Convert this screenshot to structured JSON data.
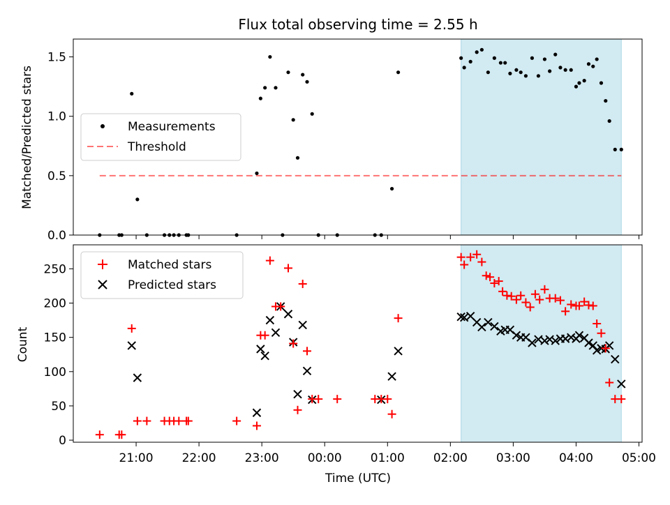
{
  "chart_data": [
    {
      "type": "scatter",
      "title": "Flux total observing time = 2.55 h",
      "xlabel": "",
      "ylabel": "Matched/Predicted stars",
      "xlim_hours": [
        20.0,
        29.05
      ],
      "ylim": [
        0,
        1.65
      ],
      "yticks": [
        0.0,
        0.5,
        1.0,
        1.5
      ],
      "ytick_labels": [
        "0.0",
        "0.5",
        "1.0",
        "1.5"
      ],
      "shaded_span_hours": [
        26.17,
        28.72
      ],
      "shaded_color": "#add8e6",
      "legend": {
        "placement": "center-left",
        "entries": [
          "Measurements",
          "Threshold"
        ]
      },
      "threshold": {
        "name": "Threshold",
        "y": 0.5,
        "x_range_hours": [
          20.42,
          28.72
        ],
        "color": "#ff0000",
        "style": "dashed"
      },
      "series": [
        {
          "name": "Measurements",
          "marker": "dot",
          "color": "#000000",
          "x": [
            20.42,
            20.73,
            20.77,
            20.93,
            21.02,
            21.17,
            21.45,
            21.53,
            21.6,
            21.68,
            21.8,
            21.83,
            22.6,
            22.92,
            22.98,
            23.05,
            23.13,
            23.22,
            23.33,
            23.42,
            23.5,
            23.57,
            23.65,
            23.72,
            23.8,
            23.9,
            24.2,
            24.8,
            24.9,
            25.07,
            25.17,
            26.17,
            26.22,
            26.32,
            26.42,
            26.5,
            26.6,
            26.7,
            26.8,
            26.87,
            26.95,
            27.05,
            27.12,
            27.2,
            27.3,
            27.4,
            27.5,
            27.58,
            27.67,
            27.75,
            27.83,
            27.92,
            28.0,
            28.05,
            28.13,
            28.2,
            28.27,
            28.33,
            28.4,
            28.47,
            28.53,
            28.62,
            28.72
          ],
          "values": [
            0,
            0,
            0,
            1.19,
            0.3,
            0,
            0,
            0,
            0,
            0,
            0,
            0,
            0,
            0.52,
            1.15,
            1.24,
            1.5,
            1.24,
            0,
            1.37,
            0.97,
            0.65,
            1.35,
            1.29,
            1.02,
            0,
            0,
            0,
            0,
            0.39,
            1.37,
            1.49,
            1.41,
            1.46,
            1.54,
            1.56,
            1.37,
            1.49,
            1.45,
            1.45,
            1.36,
            1.39,
            1.37,
            1.34,
            1.49,
            1.34,
            1.48,
            1.38,
            1.52,
            1.41,
            1.39,
            1.39,
            1.25,
            1.28,
            1.3,
            1.44,
            1.42,
            1.48,
            1.28,
            1.13,
            0.96,
            0.72,
            0.72
          ]
        }
      ]
    },
    {
      "type": "scatter",
      "title": "",
      "xlabel": "Time (UTC)",
      "ylabel": "Count",
      "xlim_hours": [
        20.0,
        29.05
      ],
      "ylim": [
        -3,
        285
      ],
      "yticks": [
        0,
        50,
        100,
        150,
        200,
        250
      ],
      "ytick_labels": [
        "0",
        "50",
        "100",
        "150",
        "200",
        "250"
      ],
      "xticks_hours": [
        21,
        22,
        23,
        24,
        25,
        26,
        27,
        28,
        29
      ],
      "xtick_labels": [
        "21:00",
        "22:00",
        "23:00",
        "00:00",
        "01:00",
        "02:00",
        "03:00",
        "04:00",
        "05:00"
      ],
      "shaded_span_hours": [
        26.17,
        28.72
      ],
      "legend": {
        "placement": "top-left",
        "entries": [
          "Matched stars",
          "Predicted stars"
        ]
      },
      "series": [
        {
          "name": "Matched stars",
          "marker": "plus",
          "color": "#ff0000",
          "x": [
            20.42,
            20.73,
            20.77,
            20.93,
            21.02,
            21.17,
            21.45,
            21.53,
            21.6,
            21.68,
            21.8,
            21.83,
            22.6,
            22.92,
            22.98,
            23.05,
            23.13,
            23.22,
            23.3,
            23.42,
            23.5,
            23.57,
            23.65,
            23.72,
            23.8,
            23.9,
            24.2,
            24.8,
            24.9,
            25.0,
            25.07,
            25.17,
            26.17,
            26.22,
            26.32,
            26.42,
            26.5,
            26.57,
            26.63,
            26.7,
            26.77,
            26.83,
            26.9,
            26.97,
            27.05,
            27.12,
            27.2,
            27.27,
            27.35,
            27.42,
            27.5,
            27.58,
            27.67,
            27.75,
            27.83,
            27.92,
            28.0,
            28.05,
            28.13,
            28.2,
            28.27,
            28.33,
            28.4,
            28.47,
            28.53,
            28.62,
            28.72
          ],
          "values": [
            8,
            8,
            8,
            163,
            28,
            28,
            28,
            28,
            28,
            28,
            28,
            28,
            28,
            21,
            153,
            153,
            262,
            195,
            195,
            251,
            141,
            44,
            228,
            130,
            60,
            60,
            60,
            60,
            60,
            60,
            38,
            178,
            267,
            256,
            267,
            271,
            260,
            240,
            238,
            229,
            232,
            217,
            211,
            210,
            205,
            211,
            201,
            194,
            213,
            205,
            220,
            207,
            207,
            204,
            188,
            198,
            196,
            196,
            202,
            197,
            196,
            170,
            156,
            134,
            84,
            60,
            60
          ],
          "tail_x": [
            28.62,
            28.72
          ]
        },
        {
          "name": "Predicted stars",
          "marker": "x",
          "color": "#000000",
          "x": [
            20.93,
            21.02,
            22.92,
            22.98,
            23.05,
            23.13,
            23.22,
            23.3,
            23.42,
            23.5,
            23.57,
            23.65,
            23.72,
            23.8,
            24.9,
            25.07,
            25.17,
            26.17,
            26.22,
            26.32,
            26.42,
            26.5,
            26.6,
            26.7,
            26.8,
            26.87,
            26.95,
            27.05,
            27.12,
            27.2,
            27.3,
            27.4,
            27.5,
            27.58,
            27.67,
            27.75,
            27.83,
            27.92,
            28.0,
            28.05,
            28.13,
            28.2,
            28.27,
            28.33,
            28.4,
            28.47,
            28.53,
            28.62,
            28.72
          ],
          "values": [
            138,
            91,
            40,
            133,
            123,
            175,
            157,
            195,
            184,
            143,
            67,
            168,
            101,
            59,
            59,
            93,
            130,
            180,
            179,
            181,
            172,
            165,
            172,
            166,
            159,
            161,
            161,
            153,
            150,
            150,
            142,
            147,
            145,
            147,
            145,
            148,
            148,
            150,
            148,
            153,
            149,
            142,
            138,
            131,
            134,
            133,
            138,
            118,
            82
          ]
        }
      ]
    }
  ]
}
